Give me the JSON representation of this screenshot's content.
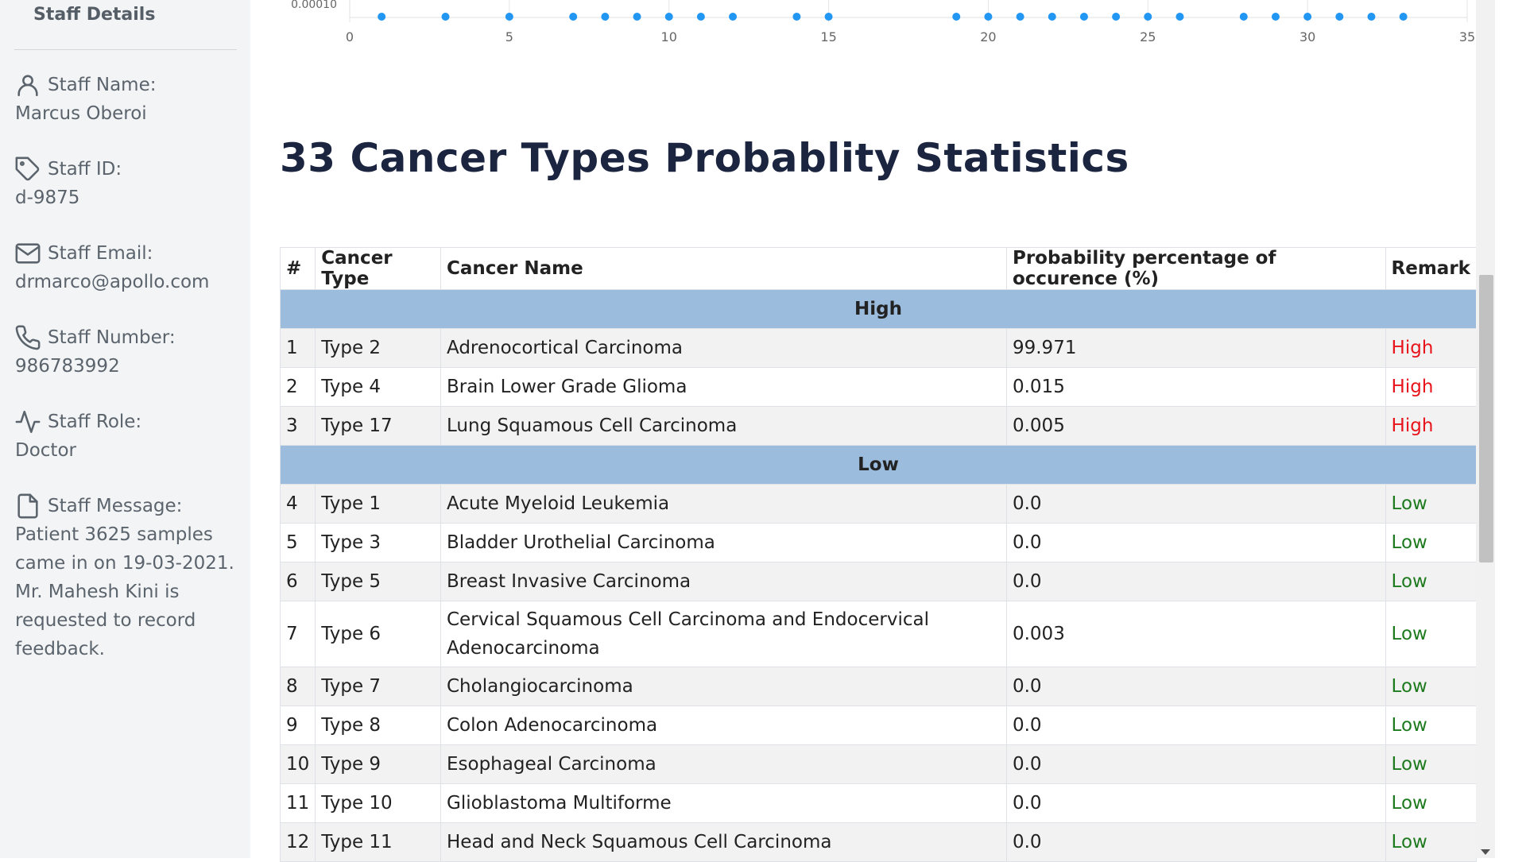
{
  "sidebar": {
    "title": "Staff Details",
    "fields": [
      {
        "icon": "user-icon",
        "label": "Staff Name:",
        "value": "Marcus Oberoi"
      },
      {
        "icon": "tag-icon",
        "label": "Staff ID:",
        "value": "d-9875"
      },
      {
        "icon": "mail-icon",
        "label": "Staff Email:",
        "value": "drmarco@apollo.com"
      },
      {
        "icon": "phone-icon",
        "label": "Staff Number:",
        "value": "986783992"
      },
      {
        "icon": "activity-icon",
        "label": "Staff Role:",
        "value": "Doctor"
      },
      {
        "icon": "file-icon",
        "label": "Staff Message:",
        "value": "Patient 3625 samples came in on 19-03-2021. Mr. Mahesh Kini is requested to record feedback."
      }
    ]
  },
  "chart_data": {
    "type": "scatter",
    "ytick_partial": "0.00010",
    "xticks": [
      "0",
      "5",
      "10",
      "15",
      "20",
      "25",
      "30",
      "35"
    ],
    "xlim": [
      0,
      35
    ],
    "point_x": [
      1,
      3,
      5,
      7,
      8,
      9,
      10,
      11,
      12,
      14,
      15,
      19,
      20,
      21,
      22,
      23,
      24,
      25,
      26,
      28,
      29,
      30,
      31,
      32,
      33
    ],
    "point_color": "#2196f3"
  },
  "heading": "33 Cancer Types Probablity Statistics",
  "table": {
    "headers": [
      "#",
      "Cancer Type",
      "Cancer Name",
      "Probability percentage of occurence (%)",
      "Remark"
    ],
    "groups": [
      {
        "label": "High",
        "rows": [
          {
            "num": "1",
            "type": "Type 2",
            "name": "Adrenocortical Carcinoma",
            "prob": "99.971",
            "remark": "High"
          },
          {
            "num": "2",
            "type": "Type 4",
            "name": "Brain Lower Grade Glioma",
            "prob": "0.015",
            "remark": "High"
          },
          {
            "num": "3",
            "type": "Type 17",
            "name": "Lung Squamous Cell Carcinoma",
            "prob": "0.005",
            "remark": "High"
          }
        ]
      },
      {
        "label": "Low",
        "rows": [
          {
            "num": "4",
            "type": "Type 1",
            "name": "Acute Myeloid Leukemia",
            "prob": "0.0",
            "remark": "Low"
          },
          {
            "num": "5",
            "type": "Type 3",
            "name": "Bladder Urothelial Carcinoma",
            "prob": "0.0",
            "remark": "Low"
          },
          {
            "num": "6",
            "type": "Type 5",
            "name": "Breast Invasive Carcinoma",
            "prob": "0.0",
            "remark": "Low"
          },
          {
            "num": "7",
            "type": "Type 6",
            "name": "Cervical Squamous Cell Carcinoma and Endocervical Adenocarcinoma",
            "prob": "0.003",
            "remark": "Low"
          },
          {
            "num": "8",
            "type": "Type 7",
            "name": "Cholangiocarcinoma",
            "prob": "0.0",
            "remark": "Low"
          },
          {
            "num": "9",
            "type": "Type 8",
            "name": "Colon Adenocarcinoma",
            "prob": "0.0",
            "remark": "Low"
          },
          {
            "num": "10",
            "type": "Type 9",
            "name": "Esophageal Carcinoma",
            "prob": "0.0",
            "remark": "Low"
          },
          {
            "num": "11",
            "type": "Type 10",
            "name": "Glioblastoma Multiforme",
            "prob": "0.0",
            "remark": "Low"
          },
          {
            "num": "12",
            "type": "Type 11",
            "name": "Head and Neck Squamous Cell Carcinoma",
            "prob": "0.0",
            "remark": "Low"
          }
        ]
      }
    ]
  },
  "colors": {
    "high_remark": "#e8141c",
    "low_remark": "#1e7a1e",
    "group_row": "#9bbcdd"
  }
}
